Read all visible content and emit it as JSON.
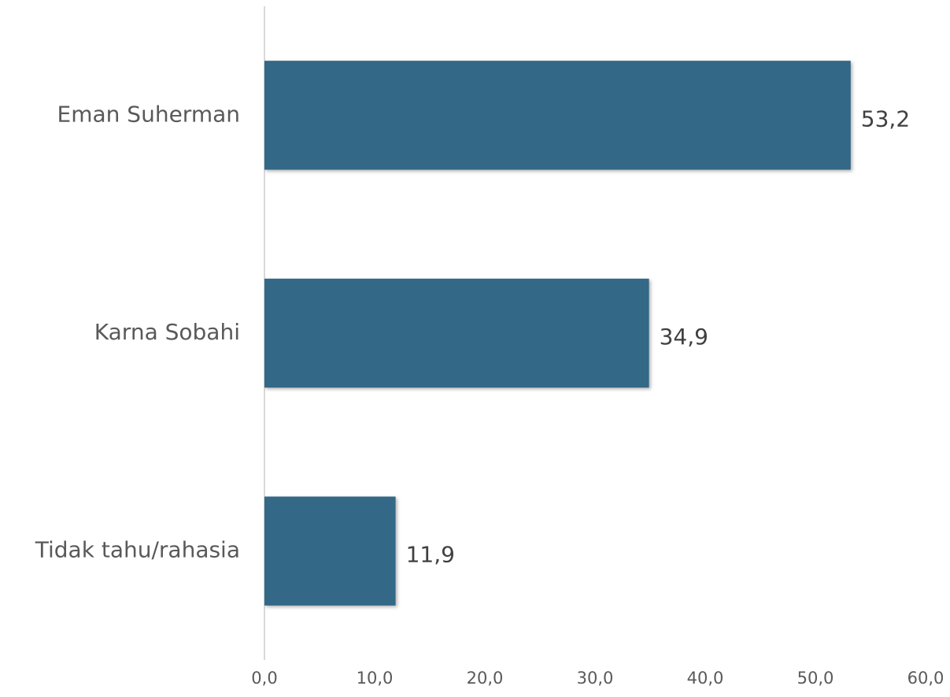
{
  "chart_data": {
    "type": "bar",
    "orientation": "horizontal",
    "categories": [
      "Eman Suherman",
      "Karna Sobahi",
      "Tidak tahu/rahasia"
    ],
    "values": [
      53.2,
      34.9,
      11.9
    ],
    "value_labels": [
      "53,2",
      "34,9",
      "11,9"
    ],
    "color": "#336886",
    "xlim": [
      0,
      60
    ],
    "xticks": [
      {
        "value": 0,
        "label": "0,0"
      },
      {
        "value": 10,
        "label": "10,0"
      },
      {
        "value": 20,
        "label": "20,0"
      },
      {
        "value": 30,
        "label": "30,0"
      },
      {
        "value": 40,
        "label": "40,0"
      },
      {
        "value": 50,
        "label": "50,0"
      },
      {
        "value": 60,
        "label": "60,0"
      }
    ],
    "grid": false
  }
}
